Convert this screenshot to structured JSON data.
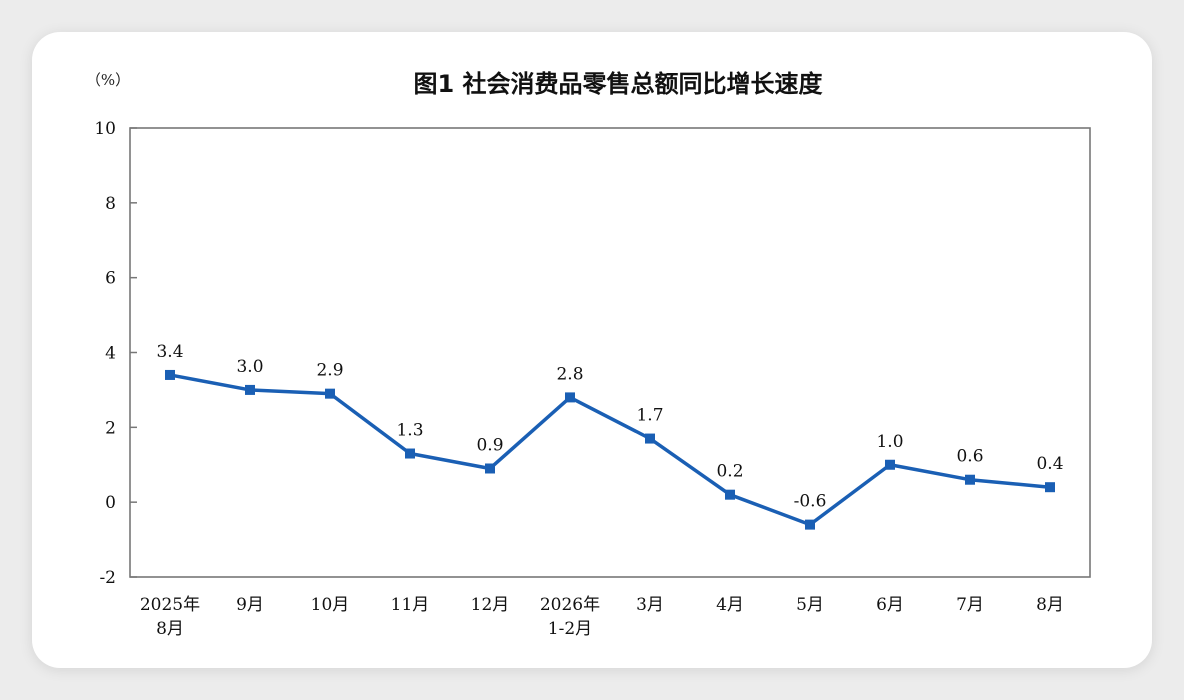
{
  "chart_data": {
    "type": "line",
    "title": "图1 社会消费品零售总额同比增长速度",
    "ylabel": "（%）",
    "xlabel": "",
    "ylim": [
      -2,
      10
    ],
    "yticks": [
      -2,
      0,
      2,
      4,
      6,
      8,
      10
    ],
    "grid": false,
    "categories": [
      [
        "2025年",
        "8月"
      ],
      [
        "9月"
      ],
      [
        "10月"
      ],
      [
        "11月"
      ],
      [
        "12月"
      ],
      [
        "2026年",
        "1-2月"
      ],
      [
        "3月"
      ],
      [
        "4月"
      ],
      [
        "5月"
      ],
      [
        "6月"
      ],
      [
        "7月"
      ],
      [
        "8月"
      ]
    ],
    "series": [
      {
        "values": [
          3.4,
          3.0,
          2.9,
          1.3,
          0.9,
          2.8,
          1.7,
          0.2,
          -0.6,
          1.0,
          0.6,
          0.4
        ],
        "labels": [
          "3.4",
          "3.0",
          "2.9",
          "1.3",
          "0.9",
          "2.8",
          "1.7",
          "0.2",
          "-0.6",
          "1.0",
          "0.6",
          "0.4"
        ],
        "color": "#1a5fb4"
      }
    ],
    "axis_color": "#777777"
  }
}
